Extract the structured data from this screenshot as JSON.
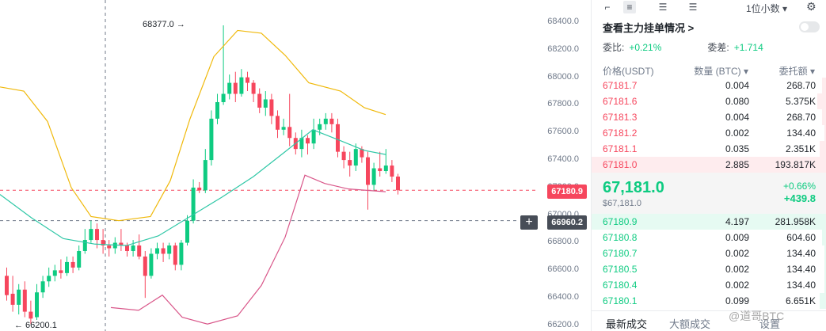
{
  "chart": {
    "y_ticks": [
      "68400.0",
      "68200.0",
      "68000.0",
      "67800.0",
      "67600.0",
      "67400.0",
      "67200.0",
      "67000.0",
      "66800.0",
      "66600.0",
      "66400.0",
      "66200.0"
    ],
    "high_note": "68377.0 →",
    "low_note": "← 66200.1",
    "last_price_tag": "67180.9",
    "crosshair_price_tag": "66960.2",
    "plus_glyph": "+",
    "colors": {
      "up": "#0ecb81",
      "down": "#f6465d",
      "ma_yellow": "#f0b90b",
      "ma_teal": "#2ec7a6",
      "ma_pink": "#d9578a"
    }
  },
  "toolbar": {
    "icons": [
      "order-book-both-icon",
      "order-book-default-icon",
      "order-book-bids-icon",
      "order-book-asks-icon"
    ],
    "glyphs": [
      "⌐",
      "≡",
      "☰",
      "☰"
    ],
    "precision": "1位小数 ▾",
    "settings_glyph": "⚙"
  },
  "whale": {
    "link": "查看主力挂单情况 >"
  },
  "ratio": {
    "ratio_label": "委比:",
    "ratio_value": "+0.21%",
    "diff_label": "委差:",
    "diff_value": "+1.714"
  },
  "book_head": {
    "price": "价格(USDT)",
    "qty": "数量 (BTC) ▾",
    "total": "委托额 ▾"
  },
  "asks": [
    {
      "price": "67181.7",
      "qty": "0.004",
      "total": "268.70",
      "depth": 0.02
    },
    {
      "price": "67181.6",
      "qty": "0.080",
      "total": "5.375K",
      "depth": 0.04
    },
    {
      "price": "67181.3",
      "qty": "0.004",
      "total": "268.70",
      "depth": 0.02
    },
    {
      "price": "67181.2",
      "qty": "0.002",
      "total": "134.40",
      "depth": 0.01
    },
    {
      "price": "67181.1",
      "qty": "0.035",
      "total": "2.351K",
      "depth": 0.03
    },
    {
      "price": "67181.0",
      "qty": "2.885",
      "total": "193.817K",
      "depth": 1.0
    }
  ],
  "mid": {
    "last_price": "67,181.0",
    "fiat": "$67,181.0",
    "change_pct": "+0.66%",
    "change_abs": "+439.8"
  },
  "bids": [
    {
      "price": "67180.9",
      "qty": "4.197",
      "total": "281.958K",
      "depth": 1.0
    },
    {
      "price": "67180.8",
      "qty": "0.009",
      "total": "604.60",
      "depth": 0.02
    },
    {
      "price": "67180.7",
      "qty": "0.002",
      "total": "134.40",
      "depth": 0.01
    },
    {
      "price": "67180.5",
      "qty": "0.002",
      "total": "134.40",
      "depth": 0.01
    },
    {
      "price": "67180.4",
      "qty": "0.002",
      "total": "134.40",
      "depth": 0.01
    },
    {
      "price": "67180.1",
      "qty": "0.099",
      "total": "6.651K",
      "depth": 0.03
    }
  ],
  "bottom_tabs": {
    "latest_trades": "最新成交",
    "large_trades": "大额成交",
    "settings": "设置"
  },
  "watermark": "@道哥BTC"
}
